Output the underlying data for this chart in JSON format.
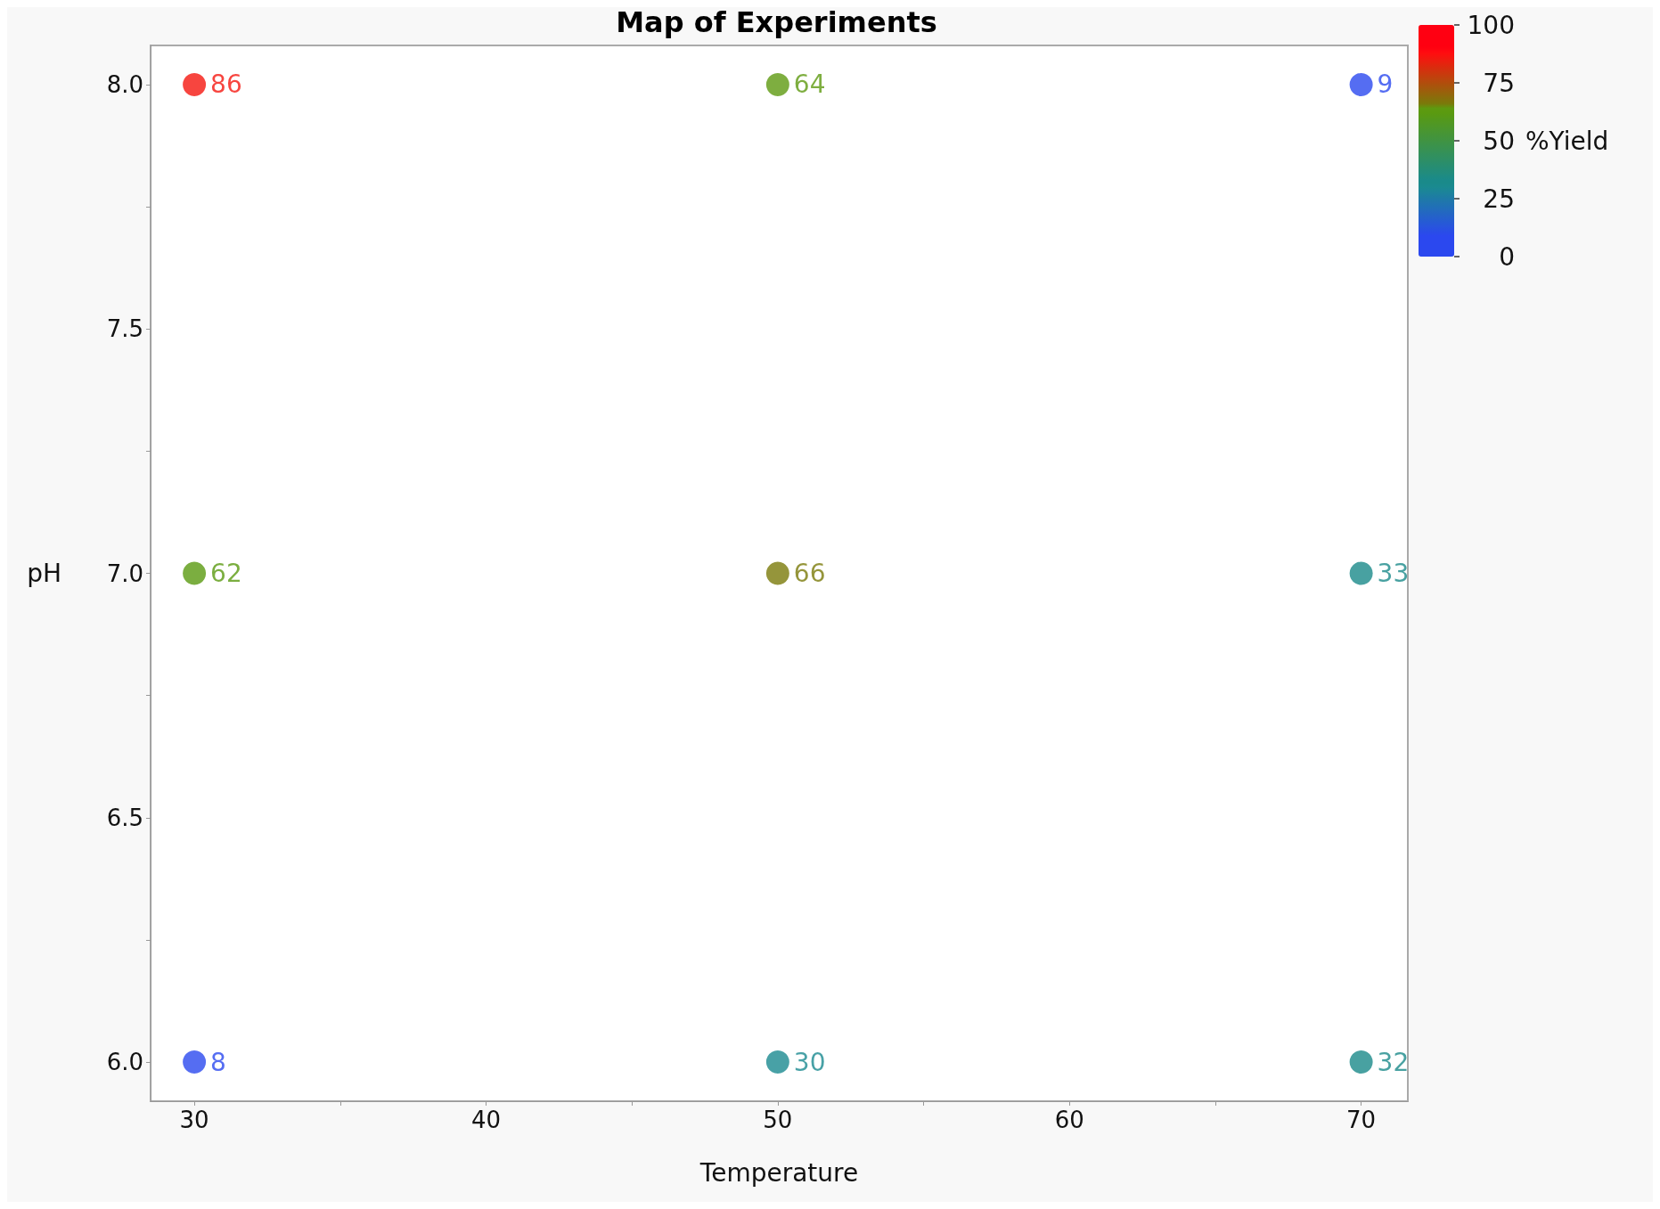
{
  "chart_data": {
    "type": "scatter",
    "title": "Map of Experiments",
    "xlabel": "Temperature",
    "ylabel": "pH",
    "clabel": "%Yield",
    "x": [
      30,
      50,
      70,
      30,
      50,
      70,
      30,
      50,
      70
    ],
    "values": [
      8,
      8,
      8,
      7,
      7,
      7,
      6,
      6,
      6
    ],
    "cvalues": [
      86,
      64,
      9,
      62,
      66,
      33,
      8,
      30,
      32
    ],
    "annotations": [
      {
        "text": "86",
        "x": 30,
        "y": 8
      },
      {
        "text": "64",
        "x": 50,
        "y": 8
      },
      {
        "text": "9",
        "x": 70,
        "y": 8
      },
      {
        "text": "62",
        "x": 30,
        "y": 7
      },
      {
        "text": "66",
        "x": 50,
        "y": 7
      },
      {
        "text": "33",
        "x": 70,
        "y": 7
      },
      {
        "text": "8",
        "x": 30,
        "y": 6
      },
      {
        "text": "30",
        "x": 50,
        "y": 6
      },
      {
        "text": "32",
        "x": 70,
        "y": 6
      }
    ],
    "colors": [
      "#f5160f",
      "#5e9a10",
      "#2b48ef",
      "#5a9a10",
      "#7a7a0a",
      "#1a8a8a",
      "#2b48ef",
      "#1a8a90",
      "#1a8a8a"
    ],
    "xlim": [
      28.5,
      71.6
    ],
    "ylim": [
      5.92,
      8.08
    ],
    "xticks": [
      30,
      {
        "value": 35,
        "label": null
      },
      40,
      {
        "value": 45,
        "label": null
      },
      50,
      {
        "value": 55,
        "label": null
      },
      60,
      {
        "value": 65,
        "label": null
      },
      70
    ],
    "yticks": [
      {
        "value": 6,
        "label": "6.0"
      },
      {
        "value": 6.25,
        "label": null
      },
      {
        "value": 6.5,
        "label": "6.5"
      },
      {
        "value": 6.75,
        "label": null
      },
      {
        "value": 7,
        "label": "7.0"
      },
      {
        "value": 7.25,
        "label": null
      },
      {
        "value": 7.5,
        "label": "7.5"
      },
      {
        "value": 7.75,
        "label": null
      },
      {
        "value": 8,
        "label": "8.0"
      }
    ],
    "clim": [
      0,
      100
    ],
    "cticks": [
      0,
      25,
      50,
      75,
      100
    ],
    "grid": false,
    "marker": "circle"
  }
}
